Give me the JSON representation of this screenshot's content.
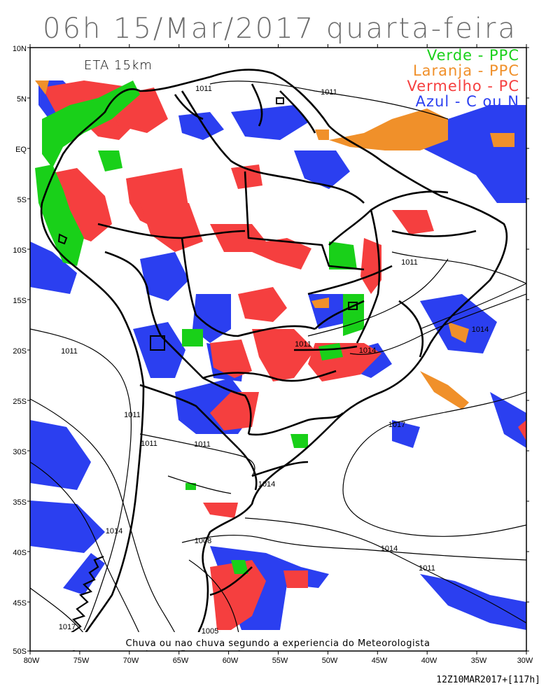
{
  "title": "06h 15/Mar/2017 quarta-feira",
  "model_label": "ETA 15km",
  "legend": [
    {
      "text": "Verde - PPC",
      "color": "#19d019"
    },
    {
      "text": "Laranja - PPC",
      "color": "#f0902a"
    },
    {
      "text": "Vermelho - PC",
      "color": "#f53f3f"
    },
    {
      "text": "Azul - C ou N",
      "color": "#2b3ff0"
    }
  ],
  "caption": "Chuva ou nao chuva segundo a experiencia do Meteorologista",
  "footer": "12Z10MAR2017+[117h]",
  "lat_labels": [
    "10N",
    "5N",
    "EQ",
    "5S",
    "10S",
    "15S",
    "20S",
    "25S",
    "30S",
    "35S",
    "40S",
    "45S",
    "50S"
  ],
  "lon_labels": [
    "80W",
    "75W",
    "70W",
    "65W",
    "60W",
    "55W",
    "50W",
    "45W",
    "40W",
    "35W",
    "30W"
  ],
  "isobar_labels": [
    "1011",
    "1011",
    "1011",
    "1011",
    "1011",
    "1011",
    "1011",
    "1011",
    "1011",
    "1014",
    "1014",
    "1014",
    "1014",
    "1014",
    "1017",
    "1017",
    "1008",
    "1005"
  ],
  "colors": {
    "green": "#19d019",
    "orange": "#f0902a",
    "red": "#f53f3f",
    "blue": "#2b3ff0"
  }
}
